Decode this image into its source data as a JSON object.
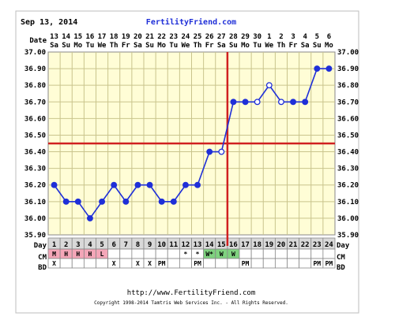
{
  "header": {
    "date": "Sep 13, 2014",
    "brand": "FertilityFriend.com"
  },
  "row_labels": {
    "date": "Date",
    "day": "Day",
    "cm": "CM",
    "bd": "BD"
  },
  "footer": {
    "url": "http://www.FertilityFriend.com",
    "copyright": "Copyright 1998-2014 Tamtris Web Services Inc. - All Rights Reserved."
  },
  "colors": {
    "line": "#1f2fd8",
    "coverline": "#d02020",
    "plot_bg": "#fffdd6",
    "grid": "#c9c48c",
    "frame": "#ffffff",
    "cm_menstrual": "#f4a6b8",
    "cm_fertile": "#7fd27f"
  },
  "chart_data": {
    "type": "line",
    "title": "",
    "xlabel": "Day",
    "ylabel": "",
    "ylim": [
      35.9,
      37.0
    ],
    "yticks": [
      "37.00",
      "36.90",
      "36.80",
      "36.70",
      "36.60",
      "36.50",
      "36.40",
      "36.30",
      "36.20",
      "36.10",
      "36.00",
      "35.90"
    ],
    "grid": true,
    "dates": [
      "13",
      "14",
      "15",
      "16",
      "17",
      "18",
      "19",
      "20",
      "21",
      "22",
      "23",
      "24",
      "25",
      "26",
      "27",
      "28",
      "29",
      "30",
      "1",
      "2",
      "3",
      "4",
      "5",
      "6"
    ],
    "weekdays": [
      "Sa",
      "Su",
      "Mo",
      "Tu",
      "We",
      "Th",
      "Fr",
      "Sa",
      "Su",
      "Mo",
      "Tu",
      "We",
      "Th",
      "Fr",
      "Sa",
      "Su",
      "Mo",
      "Tu",
      "We",
      "Th",
      "Fr",
      "Sa",
      "Su",
      "Mo"
    ],
    "days": [
      "1",
      "2",
      "3",
      "4",
      "5",
      "6",
      "7",
      "8",
      "9",
      "10",
      "11",
      "12",
      "13",
      "14",
      "15",
      "16",
      "17",
      "18",
      "19",
      "20",
      "21",
      "22",
      "23",
      "24"
    ],
    "temperatures": [
      36.2,
      36.1,
      36.1,
      36.0,
      36.1,
      36.2,
      36.1,
      36.2,
      36.2,
      36.1,
      36.1,
      36.2,
      36.2,
      36.4,
      36.4,
      36.7,
      36.7,
      36.7,
      36.8,
      36.7,
      36.7,
      36.7,
      36.9,
      36.9
    ],
    "open_points": [
      false,
      false,
      false,
      false,
      false,
      false,
      false,
      false,
      false,
      false,
      false,
      false,
      false,
      false,
      true,
      false,
      false,
      true,
      true,
      true,
      false,
      false,
      false,
      false
    ],
    "coverline": 36.45,
    "ovulation_day": 15,
    "cm": [
      "M",
      "H",
      "H",
      "H",
      "L",
      "",
      "",
      "",
      "",
      "",
      "",
      "*",
      "*",
      "W*",
      "W",
      "W",
      "",
      "",
      "",
      "",
      "",
      "",
      "",
      ""
    ],
    "cm_category": [
      "menstrual",
      "menstrual",
      "menstrual",
      "menstrual",
      "menstrual",
      "",
      "",
      "",
      "",
      "",
      "",
      "",
      "",
      "fertile",
      "fertile",
      "fertile",
      "",
      "",
      "",
      "",
      "",
      "",
      "",
      ""
    ],
    "bd": [
      "X",
      "",
      "",
      "",
      "",
      "X",
      "",
      "X",
      "X",
      "PM",
      "",
      "",
      "PM",
      "",
      "",
      "",
      "PM",
      "",
      "",
      "",
      "",
      "",
      "PM",
      "PM"
    ]
  }
}
